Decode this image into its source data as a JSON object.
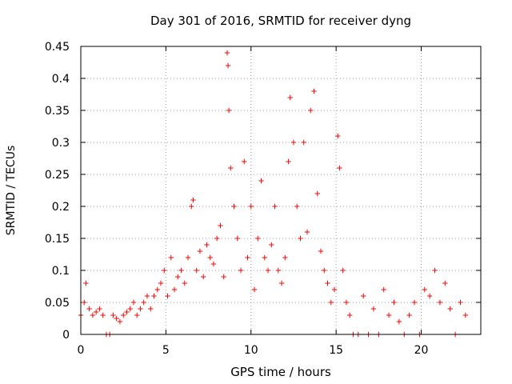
{
  "chart_data": {
    "type": "scatter",
    "title": "Day 301 of 2016, SRMTID for receiver dyng",
    "xlabel": "GPS time / hours",
    "ylabel": "SRMTID / TECUs",
    "xlim": [
      0,
      23.5
    ],
    "ylim": [
      0,
      0.45
    ],
    "xticks": [
      0,
      5,
      10,
      15,
      20
    ],
    "xtick_labels": [
      "0",
      "5",
      "10",
      "15",
      "20"
    ],
    "yticks": [
      0,
      0.05,
      0.1,
      0.15,
      0.2,
      0.25,
      0.3,
      0.35,
      0.4,
      0.45
    ],
    "ytick_labels": [
      "0",
      "0.05",
      "0.1",
      "0.15",
      "0.2",
      "0.25",
      "0.3",
      "0.35",
      "0.4",
      "0.45"
    ],
    "grid": true,
    "marker": "+",
    "color": "#ff0000",
    "series": [
      {
        "name": "SRMTID",
        "x": [
          0.0,
          0.2,
          0.3,
          0.5,
          0.7,
          0.9,
          1.1,
          1.3,
          1.5,
          1.7,
          1.9,
          2.1,
          2.3,
          2.5,
          2.7,
          2.9,
          3.1,
          3.3,
          3.5,
          3.7,
          3.9,
          4.1,
          4.3,
          4.5,
          4.7,
          4.9,
          5.1,
          5.3,
          5.5,
          5.7,
          5.9,
          6.1,
          6.3,
          6.5,
          6.6,
          6.8,
          7.0,
          7.2,
          7.4,
          7.6,
          7.8,
          8.0,
          8.2,
          8.4,
          8.6,
          8.65,
          8.7,
          8.8,
          9.0,
          9.2,
          9.4,
          9.6,
          9.8,
          10.0,
          10.2,
          10.4,
          10.6,
          10.8,
          11.0,
          11.2,
          11.4,
          11.6,
          11.8,
          12.0,
          12.2,
          12.3,
          12.5,
          12.7,
          12.9,
          13.1,
          13.3,
          13.5,
          13.7,
          13.9,
          14.1,
          14.3,
          14.5,
          14.7,
          14.9,
          15.1,
          15.2,
          15.4,
          15.6,
          15.8,
          16.0,
          16.3,
          16.6,
          16.9,
          17.2,
          17.5,
          17.8,
          18.1,
          18.4,
          18.7,
          19.0,
          19.3,
          19.6,
          19.9,
          20.2,
          20.5,
          20.8,
          21.1,
          21.4,
          21.7,
          22.0,
          22.3,
          22.6
        ],
        "y": [
          0.03,
          0.05,
          0.08,
          0.04,
          0.03,
          0.035,
          0.04,
          0.03,
          0.0,
          0.0,
          0.03,
          0.025,
          0.02,
          0.03,
          0.035,
          0.04,
          0.05,
          0.03,
          0.04,
          0.05,
          0.06,
          0.04,
          0.06,
          0.07,
          0.08,
          0.1,
          0.06,
          0.12,
          0.07,
          0.09,
          0.1,
          0.08,
          0.12,
          0.2,
          0.21,
          0.1,
          0.13,
          0.09,
          0.14,
          0.12,
          0.11,
          0.15,
          0.17,
          0.09,
          0.44,
          0.42,
          0.35,
          0.26,
          0.2,
          0.15,
          0.1,
          0.27,
          0.12,
          0.2,
          0.07,
          0.15,
          0.24,
          0.12,
          0.1,
          0.14,
          0.2,
          0.1,
          0.08,
          0.12,
          0.27,
          0.37,
          0.3,
          0.2,
          0.15,
          0.3,
          0.16,
          0.35,
          0.38,
          0.22,
          0.13,
          0.1,
          0.08,
          0.05,
          0.07,
          0.31,
          0.26,
          0.1,
          0.05,
          0.03,
          0.0,
          0.0,
          0.06,
          0.0,
          0.04,
          0.0,
          0.07,
          0.03,
          0.05,
          0.02,
          0.0,
          0.03,
          0.05,
          0.0,
          0.07,
          0.06,
          0.1,
          0.05,
          0.08,
          0.04,
          0.0,
          0.05,
          0.03
        ]
      }
    ]
  }
}
